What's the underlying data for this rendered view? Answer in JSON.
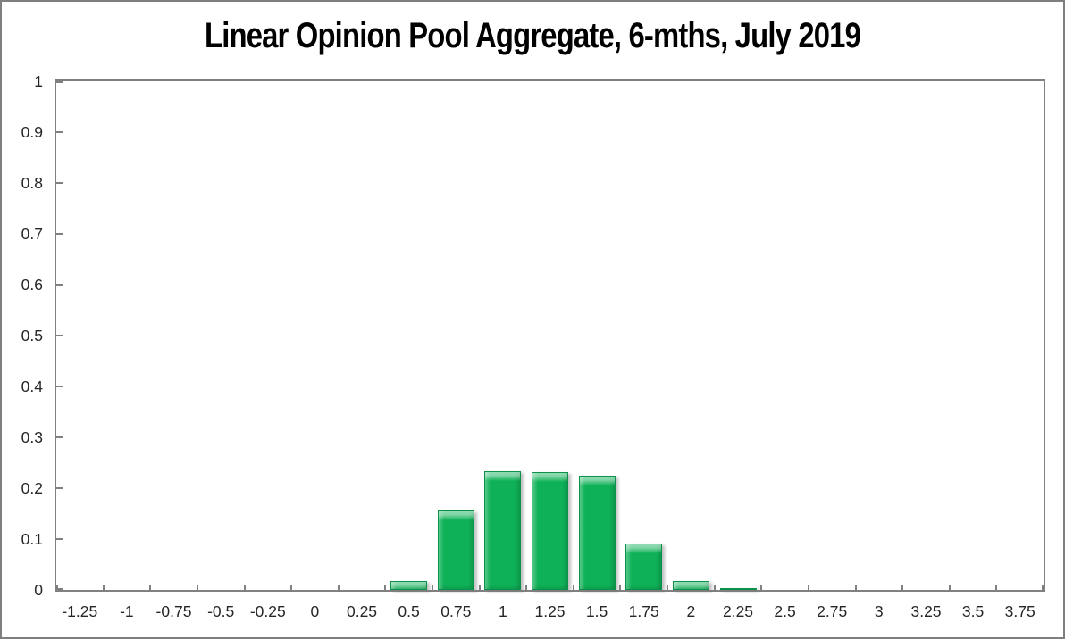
{
  "window": {
    "background": "#ffffff",
    "frame_border_color": "#7f7f7f"
  },
  "chart_data": {
    "type": "bar",
    "title": "Linear Opinion Pool Aggregate, 6-mths, July 2019",
    "categories": [
      "-1.25",
      "-1",
      "-0.75",
      "-0.5",
      "-0.25",
      "0",
      "0.25",
      "0.5",
      "0.75",
      "1",
      "1.25",
      "1.5",
      "1.75",
      "2",
      "2.25",
      "2.5",
      "2.75",
      "3",
      "3.25",
      "3.5",
      "3.75"
    ],
    "values": [
      0,
      0,
      0,
      0,
      0,
      0,
      0,
      0.017,
      0.157,
      0.233,
      0.231,
      0.225,
      0.091,
      0.018,
      0.004,
      0,
      0,
      0,
      0,
      0,
      0
    ],
    "xlabel": "",
    "ylabel": "",
    "ylim": [
      0,
      1
    ],
    "yticks": [
      0,
      0.1,
      0.2,
      0.3,
      0.4,
      0.5,
      0.6,
      0.7,
      0.8,
      0.9,
      1
    ],
    "ytick_labels": [
      "0",
      "0.1",
      "0.2",
      "0.3",
      "0.4",
      "0.5",
      "0.6",
      "0.7",
      "0.8",
      "0.9",
      "1"
    ],
    "grid": false,
    "legend": false,
    "tick_style": "inside",
    "colors": {
      "bar_fill": "#0EB157",
      "bar_border": "#0B9149",
      "axis": "#808080",
      "tick_label": "#262626",
      "title": "#000000"
    }
  }
}
